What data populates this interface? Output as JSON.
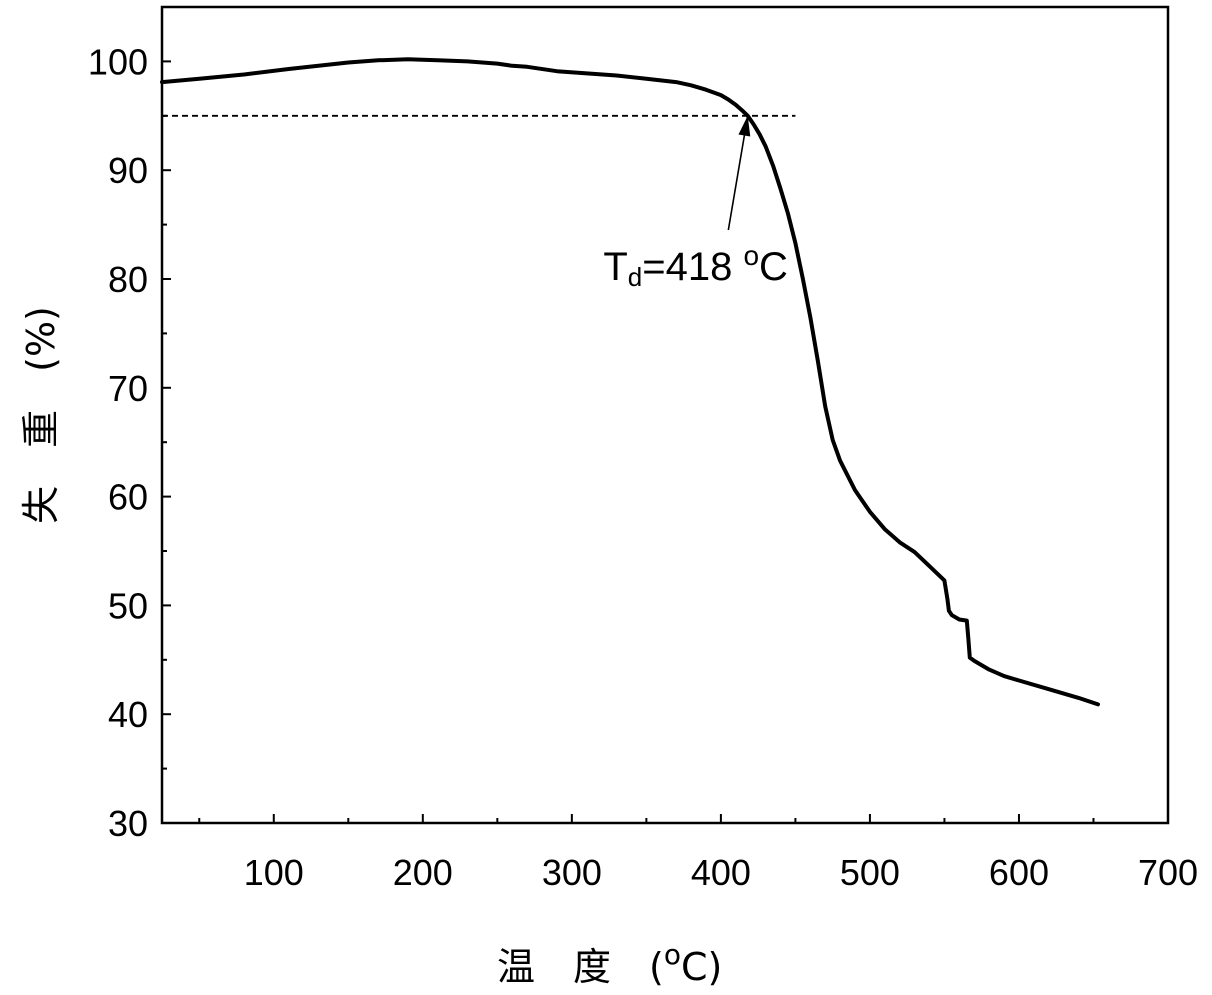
{
  "chart_data": {
    "type": "line",
    "title": "",
    "xlabel": "温 度 ( oC)",
    "ylabel": "失 重 (%)",
    "xlabel_parts": {
      "text": "温　度　(",
      "sup": "o",
      "unit": "C)"
    },
    "ylabel_parts": {
      "text": "失　重　(%)"
    },
    "xlim": [
      25,
      700
    ],
    "ylim": [
      30,
      105
    ],
    "xticks": [
      100,
      200,
      300,
      400,
      500,
      600,
      700
    ],
    "yticks": [
      30,
      40,
      50,
      60,
      70,
      80,
      90,
      100
    ],
    "grid": false,
    "legend": "none",
    "series": [
      {
        "color": "#000000",
        "x": [
          25,
          50,
          80,
          110,
          130,
          150,
          170,
          190,
          210,
          230,
          250,
          260,
          270,
          290,
          310,
          330,
          350,
          370,
          380,
          390,
          400,
          405,
          410,
          415,
          418,
          422,
          426,
          430,
          435,
          440,
          445,
          450,
          455,
          460,
          465,
          470,
          475,
          480,
          490,
          500,
          510,
          520,
          530,
          540,
          550,
          552,
          553,
          555,
          560,
          565,
          566,
          567,
          570,
          580,
          590,
          600,
          620,
          640,
          653
        ],
        "y": [
          98.1,
          98.4,
          98.8,
          99.3,
          99.6,
          99.9,
          100.1,
          100.2,
          100.1,
          100.0,
          99.8,
          99.6,
          99.5,
          99.1,
          98.9,
          98.7,
          98.4,
          98.1,
          97.8,
          97.4,
          96.9,
          96.5,
          96.0,
          95.4,
          95.0,
          94.2,
          93.3,
          92.2,
          90.4,
          88.3,
          86.0,
          83.3,
          80.0,
          76.5,
          72.5,
          68.3,
          65.2,
          63.3,
          60.6,
          58.6,
          57.0,
          55.8,
          54.9,
          53.6,
          52.3,
          50.6,
          49.5,
          49.1,
          48.7,
          48.6,
          47.0,
          45.2,
          44.9,
          44.1,
          43.5,
          43.1,
          42.3,
          41.5,
          40.9
        ]
      }
    ],
    "reference_line": {
      "y": 95,
      "x_range": [
        25,
        450
      ],
      "style": "dashed"
    },
    "annotations": [
      {
        "text_main": "T",
        "text_sub": "d",
        "text_value": "=418 ",
        "text_sup": "o",
        "text_unit": "C",
        "arrow_from": [
          405,
          84.5
        ],
        "arrow_to": [
          418,
          95
        ]
      }
    ]
  }
}
